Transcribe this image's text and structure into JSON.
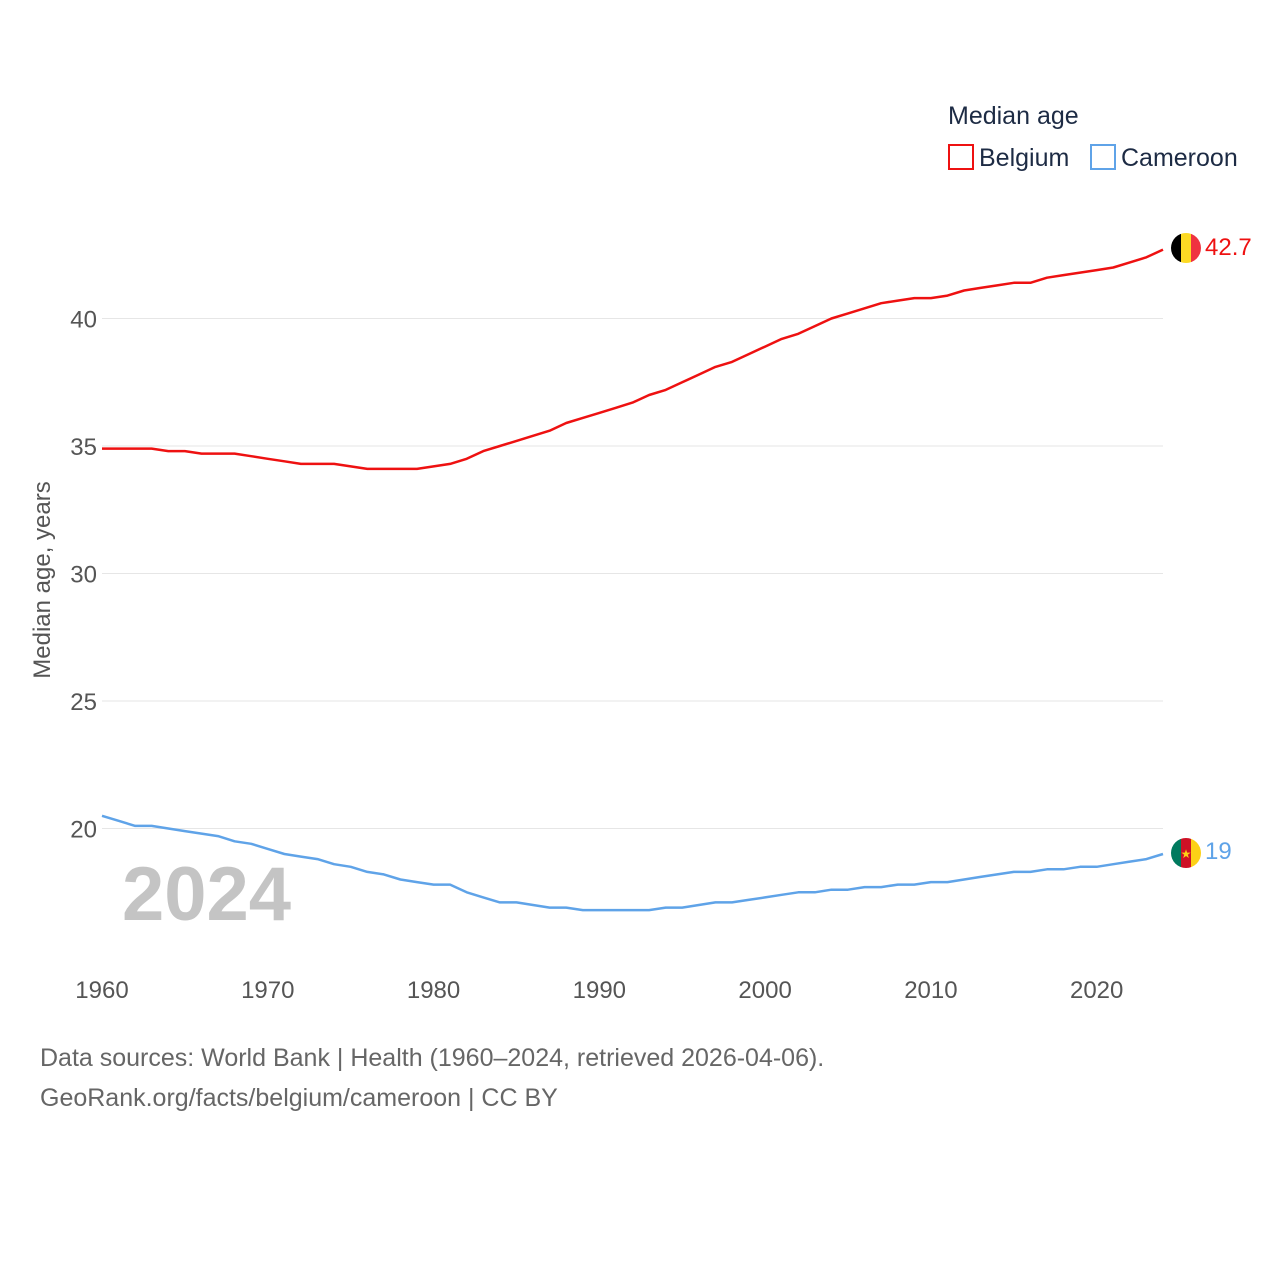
{
  "chart_data": {
    "type": "line",
    "ylabel": "Median age, years",
    "xlabel": "",
    "xlim": [
      1960,
      2024
    ],
    "ylim": [
      15,
      45
    ],
    "x_ticks": [
      1960,
      1970,
      1980,
      1990,
      2000,
      2010,
      2020
    ],
    "y_ticks": [
      20,
      25,
      30,
      35,
      40
    ],
    "grid": true,
    "legend": {
      "title": "Median age",
      "position": "top-right"
    },
    "current_year": "2024",
    "x": [
      1960,
      1961,
      1962,
      1963,
      1964,
      1965,
      1966,
      1967,
      1968,
      1969,
      1970,
      1971,
      1972,
      1973,
      1974,
      1975,
      1976,
      1977,
      1978,
      1979,
      1980,
      1981,
      1982,
      1983,
      1984,
      1985,
      1986,
      1987,
      1988,
      1989,
      1990,
      1991,
      1992,
      1993,
      1994,
      1995,
      1996,
      1997,
      1998,
      1999,
      2000,
      2001,
      2002,
      2003,
      2004,
      2005,
      2006,
      2007,
      2008,
      2009,
      2010,
      2011,
      2012,
      2013,
      2014,
      2015,
      2016,
      2017,
      2018,
      2019,
      2020,
      2021,
      2022,
      2023,
      2024
    ],
    "series": [
      {
        "name": "Belgium",
        "color": "#ee1111",
        "end_label": "42.7",
        "flag": "belgium-flag",
        "values": [
          34.9,
          34.9,
          34.9,
          34.9,
          34.8,
          34.8,
          34.7,
          34.7,
          34.7,
          34.6,
          34.5,
          34.4,
          34.3,
          34.3,
          34.3,
          34.2,
          34.1,
          34.1,
          34.1,
          34.1,
          34.2,
          34.3,
          34.5,
          34.8,
          35.0,
          35.2,
          35.4,
          35.6,
          35.9,
          36.1,
          36.3,
          36.5,
          36.7,
          37.0,
          37.2,
          37.5,
          37.8,
          38.1,
          38.3,
          38.6,
          38.9,
          39.2,
          39.4,
          39.7,
          40.0,
          40.2,
          40.4,
          40.6,
          40.7,
          40.8,
          40.8,
          40.9,
          41.1,
          41.2,
          41.3,
          41.4,
          41.4,
          41.6,
          41.7,
          41.8,
          41.9,
          42.0,
          42.2,
          42.4,
          42.7
        ]
      },
      {
        "name": "Cameroon",
        "color": "#5fa3e8",
        "end_label": "19",
        "flag": "cameroon-flag",
        "values": [
          20.5,
          20.3,
          20.1,
          20.1,
          20.0,
          19.9,
          19.8,
          19.7,
          19.5,
          19.4,
          19.2,
          19.0,
          18.9,
          18.8,
          18.6,
          18.5,
          18.3,
          18.2,
          18.0,
          17.9,
          17.8,
          17.8,
          17.5,
          17.3,
          17.1,
          17.1,
          17.0,
          16.9,
          16.9,
          16.8,
          16.8,
          16.8,
          16.8,
          16.8,
          16.9,
          16.9,
          17.0,
          17.1,
          17.1,
          17.2,
          17.3,
          17.4,
          17.5,
          17.5,
          17.6,
          17.6,
          17.7,
          17.7,
          17.8,
          17.8,
          17.9,
          17.9,
          18.0,
          18.1,
          18.2,
          18.3,
          18.3,
          18.4,
          18.4,
          18.5,
          18.5,
          18.6,
          18.7,
          18.8,
          19.0
        ]
      }
    ]
  },
  "footer": {
    "sources": "Data sources: World Bank | Health (1960–2024, retrieved 2026-04-06).",
    "credit": "GeoRank.org/facts/belgium/cameroon | CC BY"
  }
}
